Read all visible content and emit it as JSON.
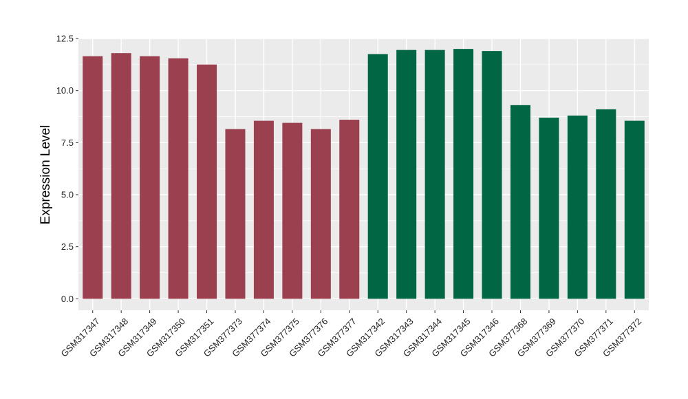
{
  "chart_data": {
    "type": "bar",
    "title": "",
    "xlabel": "",
    "ylabel": "Expression Level",
    "ylim": [
      -0.55,
      12.5
    ],
    "yticks": [
      0.0,
      2.5,
      5.0,
      7.5,
      10.0,
      12.5
    ],
    "ytick_labels": [
      "0.0",
      "2.5",
      "5.0",
      "7.5",
      "10.0",
      "12.5"
    ],
    "grid": true,
    "legend": "none",
    "categories": [
      "GSM317347",
      "GSM317348",
      "GSM317349",
      "GSM317350",
      "GSM317351",
      "GSM377373",
      "GSM377374",
      "GSM377375",
      "GSM377376",
      "GSM377377",
      "GSM317342",
      "GSM317343",
      "GSM317344",
      "GSM317345",
      "GSM317346",
      "GSM377368",
      "GSM377369",
      "GSM377370",
      "GSM377371",
      "GSM377372"
    ],
    "values": [
      11.65,
      11.8,
      11.65,
      11.55,
      11.25,
      8.15,
      8.55,
      8.45,
      8.15,
      8.6,
      11.75,
      11.95,
      11.95,
      12.0,
      11.9,
      9.3,
      8.7,
      8.8,
      9.1,
      8.55
    ],
    "groups": [
      0,
      0,
      0,
      0,
      0,
      0,
      0,
      0,
      0,
      0,
      1,
      1,
      1,
      1,
      1,
      1,
      1,
      1,
      1,
      1
    ],
    "colors": [
      "#9b404f",
      "#006644"
    ],
    "panel_background": "#ebebeb",
    "grid_color": "#ffffff"
  }
}
